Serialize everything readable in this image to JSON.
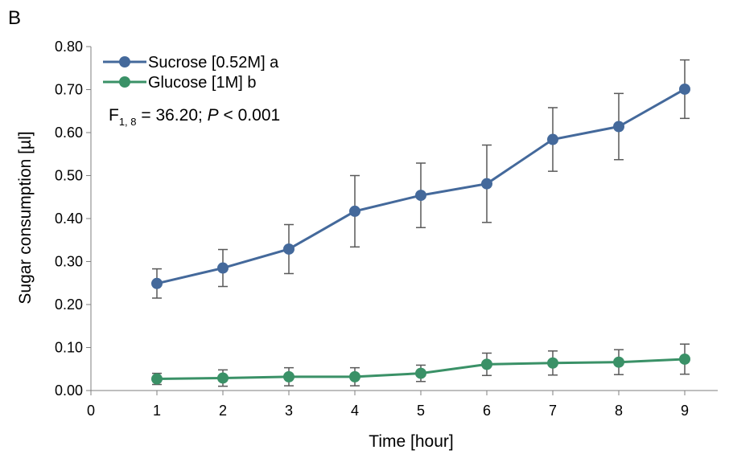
{
  "chart_data": {
    "type": "line",
    "panel_label": "B",
    "xlabel": "Time [hour]",
    "ylabel": "Sugar consumption [µl]",
    "xlim": [
      0,
      9.5
    ],
    "ylim": [
      0,
      0.8
    ],
    "x_ticks": [
      "0",
      "1",
      "2",
      "3",
      "4",
      "5",
      "6",
      "7",
      "8",
      "9"
    ],
    "y_ticks": [
      "0.00",
      "0.10",
      "0.20",
      "0.30",
      "0.40",
      "0.50",
      "0.60",
      "0.70",
      "0.80"
    ],
    "grid": false,
    "legend_position": "top-left",
    "annotation": {
      "prefix": "F",
      "subscript": "1, 8",
      "middle": " = 36.20; ",
      "p_symbol": "P",
      "suffix": " < 0.001"
    },
    "x": [
      1,
      2,
      3,
      4,
      5,
      6,
      7,
      8,
      9
    ],
    "series": [
      {
        "name": "Sucrose [0.52M] a",
        "color": "#44699b",
        "values": [
          0.249,
          0.285,
          0.329,
          0.417,
          0.454,
          0.481,
          0.584,
          0.614,
          0.701
        ],
        "error": [
          0.034,
          0.043,
          0.057,
          0.083,
          0.075,
          0.09,
          0.074,
          0.077,
          0.068
        ]
      },
      {
        "name": "Glucose [1M] b",
        "color": "#3a9167",
        "values": [
          0.027,
          0.029,
          0.032,
          0.032,
          0.04,
          0.061,
          0.064,
          0.066,
          0.073
        ],
        "error": [
          0.013,
          0.019,
          0.021,
          0.021,
          0.019,
          0.026,
          0.028,
          0.029,
          0.035
        ]
      }
    ],
    "error_bar_color": "#595959",
    "axis_color": "#7f7f7f"
  }
}
